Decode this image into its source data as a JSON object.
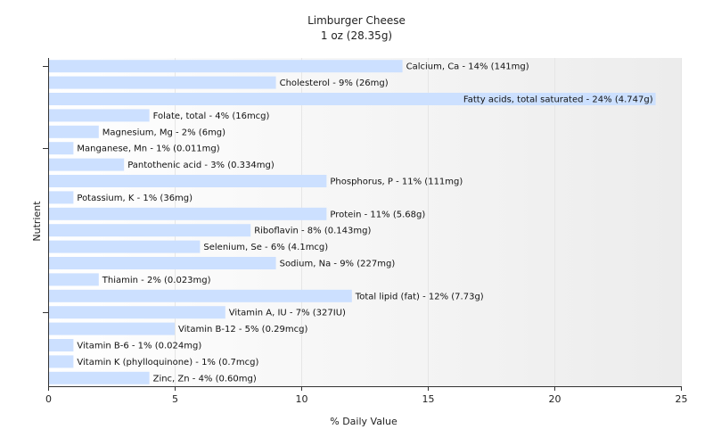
{
  "chart_data": {
    "type": "bar",
    "orientation": "horizontal",
    "title": "Limburger Cheese",
    "subtitle": "1 oz (28.35g)",
    "xlabel": "% Daily Value",
    "ylabel": "Nutrient",
    "xlim": [
      0,
      25
    ],
    "xticks": [
      "0",
      "5",
      "10",
      "15",
      "20",
      "25"
    ],
    "grid": "vertical",
    "bar_color": "#cce0ff",
    "categories": [
      "Calcium, Ca",
      "Cholesterol",
      "Fatty acids, total saturated",
      "Folate, total",
      "Magnesium, Mg",
      "Manganese, Mn",
      "Pantothenic acid",
      "Phosphorus, P",
      "Potassium, K",
      "Protein",
      "Riboflavin",
      "Selenium, Se",
      "Sodium, Na",
      "Thiamin",
      "Total lipid (fat)",
      "Vitamin A, IU",
      "Vitamin B-12",
      "Vitamin B-6",
      "Vitamin K (phylloquinone)",
      "Zinc, Zn"
    ],
    "values": [
      14,
      9,
      24,
      4,
      2,
      1,
      3,
      11,
      1,
      11,
      8,
      6,
      9,
      2,
      12,
      7,
      5,
      1,
      1,
      4
    ],
    "data_labels": [
      "Calcium, Ca - 14% (141mg)",
      "Cholesterol - 9% (26mg)",
      "Fatty acids, total saturated - 24% (4.747g)",
      "Folate, total - 4% (16mcg)",
      "Magnesium, Mg - 2% (6mg)",
      "Manganese, Mn - 1% (0.011mg)",
      "Pantothenic acid - 3% (0.334mg)",
      "Phosphorus, P - 11% (111mg)",
      "Potassium, K - 1% (36mg)",
      "Protein - 11% (5.68g)",
      "Riboflavin - 8% (0.143mg)",
      "Selenium, Se - 6% (4.1mcg)",
      "Sodium, Na - 9% (227mg)",
      "Thiamin - 2% (0.023mg)",
      "Total lipid (fat) - 12% (7.73g)",
      "Vitamin A, IU - 7% (327IU)",
      "Vitamin B-12 - 5% (0.29mcg)",
      "Vitamin B-6 - 1% (0.024mg)",
      "Vitamin K (phylloquinone) - 1% (0.7mcg)",
      "Zinc, Zn - 4% (0.60mg)"
    ]
  }
}
